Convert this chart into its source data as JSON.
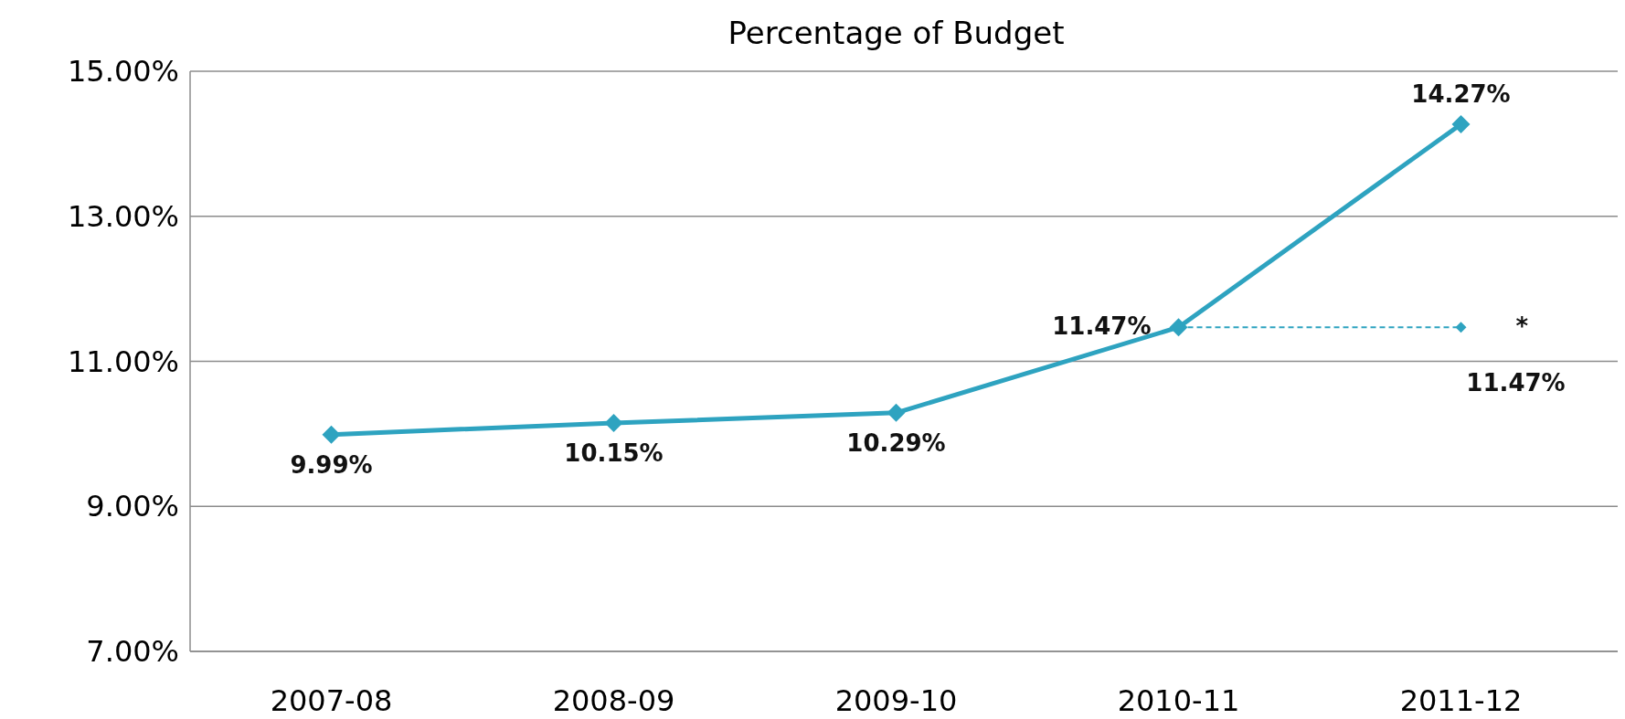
{
  "chart_data": {
    "type": "line",
    "title": "Percentage of Budget",
    "categories": [
      "2007-08",
      "2008-09",
      "2009-10",
      "2010-11",
      "2011-12"
    ],
    "series": [
      {
        "color": "#2ea3c0",
        "values": [
          9.99,
          10.15,
          10.29,
          11.47,
          14.27
        ],
        "value_labels": [
          "9.99%",
          "10.15%",
          "10.29%",
          "11.47%",
          "14.27%"
        ],
        "marker": "diamond",
        "line_style": "solid"
      },
      {
        "color": "#2ea3c0",
        "values": [
          null,
          null,
          null,
          11.47,
          11.47
        ],
        "value_labels": [
          null,
          null,
          null,
          null,
          "11.47%"
        ],
        "marker": "diamond",
        "line_style": "dashed"
      }
    ],
    "ylim": [
      7,
      15
    ],
    "yticks": [
      {
        "value": 7,
        "label": "7.00%"
      },
      {
        "value": 9,
        "label": "9.00%"
      },
      {
        "value": 11,
        "label": "11.00%"
      },
      {
        "value": 13,
        "label": "13.00%"
      },
      {
        "value": 15,
        "label": "15.00%"
      }
    ],
    "grid": "y",
    "annotations": [
      {
        "text": "*",
        "x": "2011-12",
        "y": 11.47
      }
    ]
  }
}
